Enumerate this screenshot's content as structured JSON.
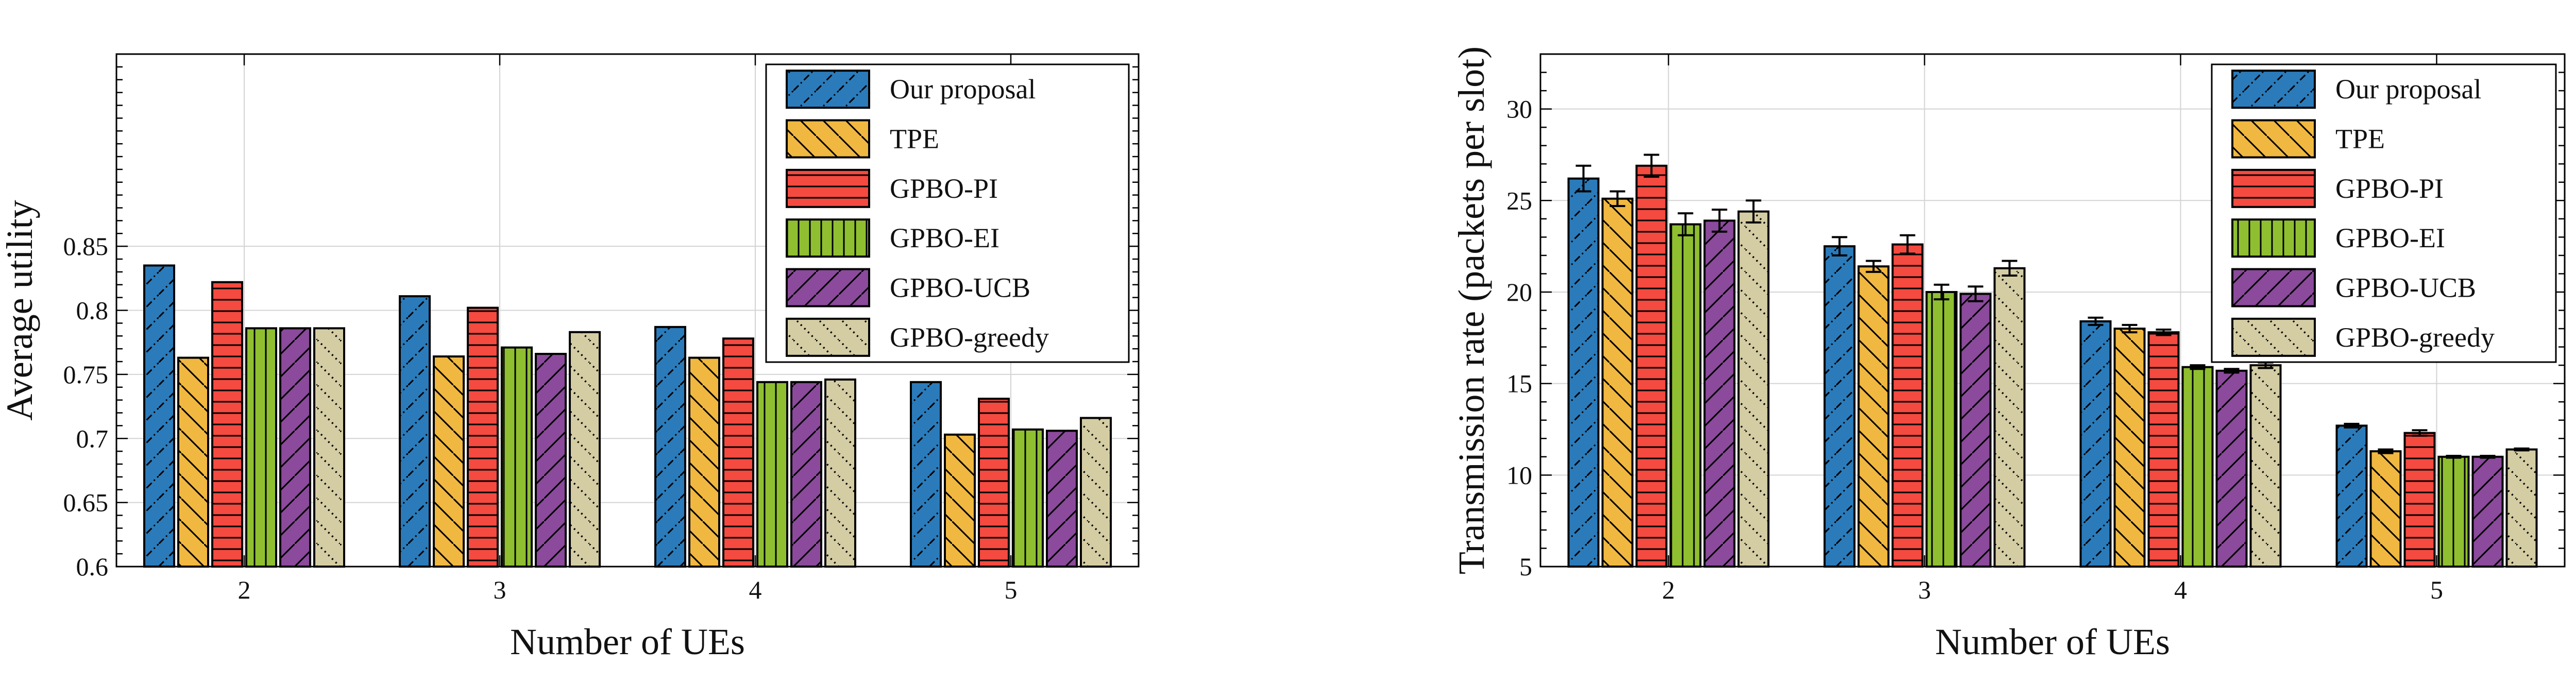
{
  "chart_data": [
    {
      "type": "bar",
      "xlabel": "Number of UEs",
      "ylabel": "Average utility",
      "categories": [
        "2",
        "3",
        "4",
        "5"
      ],
      "ylim": [
        0.6,
        1.0
      ],
      "yticks": [
        "0.6",
        "0.65",
        "0.7",
        "0.75",
        "0.8",
        "0.85"
      ],
      "grid": true,
      "legend_position": "top-right",
      "series": [
        {
          "name": "Our proposal",
          "values": [
            0.835,
            0.811,
            0.787,
            0.744
          ]
        },
        {
          "name": "TPE",
          "values": [
            0.763,
            0.764,
            0.763,
            0.703
          ]
        },
        {
          "name": "GPBO-PI",
          "values": [
            0.822,
            0.802,
            0.778,
            0.731
          ]
        },
        {
          "name": "GPBO-EI",
          "values": [
            0.786,
            0.771,
            0.744,
            0.707
          ]
        },
        {
          "name": "GPBO-UCB",
          "values": [
            0.786,
            0.766,
            0.744,
            0.706
          ]
        },
        {
          "name": "GPBO-greedy",
          "values": [
            0.786,
            0.783,
            0.746,
            0.716
          ]
        }
      ]
    },
    {
      "type": "bar",
      "xlabel": "Number of UEs",
      "ylabel": "Transmission rate (packets per slot)",
      "categories": [
        "2",
        "3",
        "4",
        "5"
      ],
      "ylim": [
        5,
        33
      ],
      "yticks": [
        "5",
        "10",
        "15",
        "20",
        "25",
        "30"
      ],
      "grid": true,
      "legend_position": "top-right",
      "error_bars": true,
      "series": [
        {
          "name": "Our proposal",
          "values": [
            26.2,
            22.5,
            18.4,
            12.7
          ],
          "errors": [
            0.7,
            0.5,
            0.2,
            0.1
          ]
        },
        {
          "name": "TPE",
          "values": [
            25.1,
            21.4,
            18.0,
            11.3
          ],
          "errors": [
            0.4,
            0.3,
            0.2,
            0.1
          ]
        },
        {
          "name": "GPBO-PI",
          "values": [
            26.9,
            22.6,
            17.8,
            12.3
          ],
          "errors": [
            0.6,
            0.5,
            0.15,
            0.15
          ]
        },
        {
          "name": "GPBO-EI",
          "values": [
            23.7,
            20.0,
            15.9,
            11.0
          ],
          "errors": [
            0.6,
            0.4,
            0.1,
            0.05
          ]
        },
        {
          "name": "GPBO-UCB",
          "values": [
            23.9,
            19.9,
            15.7,
            11.0
          ],
          "errors": [
            0.6,
            0.4,
            0.1,
            0.05
          ]
        },
        {
          "name": "GPBO-greedy",
          "values": [
            24.4,
            21.3,
            16.0,
            11.4
          ],
          "errors": [
            0.6,
            0.4,
            0.15,
            0.05
          ]
        }
      ]
    }
  ],
  "style": {
    "series_colors": [
      "#2b7bba",
      "#f0b840",
      "#f44a40",
      "#8fbf30",
      "#8b4a9b",
      "#d4cda4"
    ],
    "series_hatches": [
      "dashdot-diagonal",
      "backslash",
      "horizontal",
      "vertical",
      "diagonal",
      "dotted-backslash"
    ],
    "grid_color": "#d3d3d3",
    "axis_color": "#000000"
  }
}
